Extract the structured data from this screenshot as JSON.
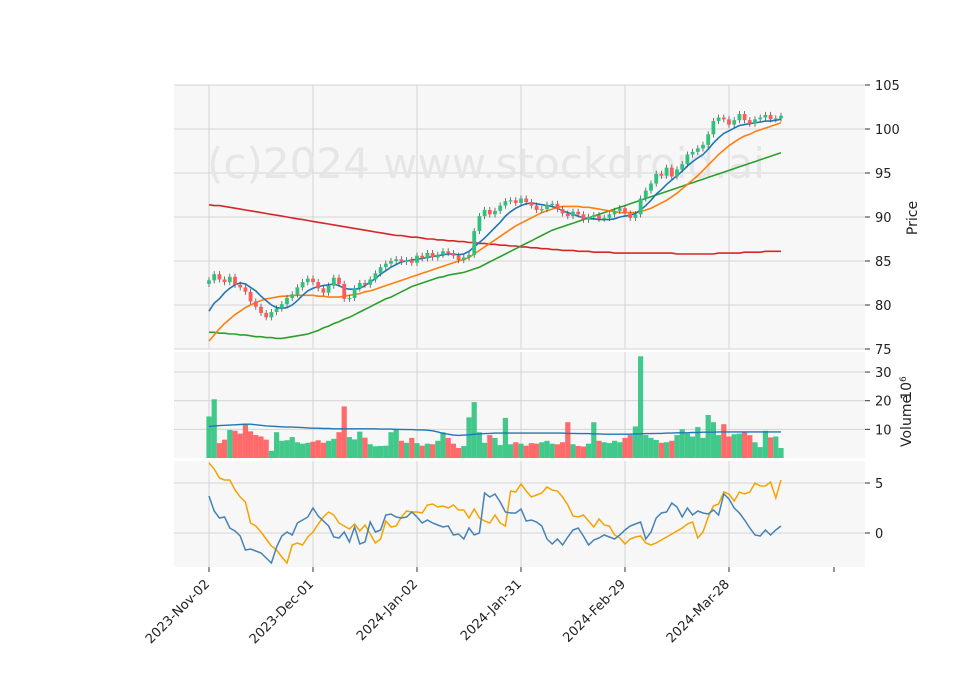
{
  "watermark": "(c)2024 www.stockdroid.ai",
  "colors": {
    "up": "#2ec27e",
    "down": "#ff5a5a",
    "ma_short": "#1f77b4",
    "ma_mid": "#ff7f0e",
    "ma_long": "#2ca02c",
    "ma_longest": "#d62728",
    "osc_a": "#f5a300",
    "osc_b": "#4682b4",
    "panel_bg": "#f7f7f7",
    "grid": "#d4d4d4"
  },
  "chart_data": [
    {
      "type": "candlestick",
      "panel": "price",
      "ylabel": "Price",
      "ylim": [
        75,
        105
      ],
      "yticks": [
        75,
        80,
        85,
        90,
        95,
        100,
        105
      ],
      "x_tick_labels": [
        "2023-Nov-02",
        "2023-Dec-01",
        "2024-Jan-02",
        "2024-Jan-31",
        "2024-Feb-29",
        "2024-Mar-28"
      ],
      "x_tick_index": [
        0,
        20,
        40,
        60,
        80,
        100
      ],
      "grid": true,
      "close": [
        82.8,
        83.5,
        82.9,
        82.6,
        83.2,
        82.3,
        82.0,
        81.5,
        80.4,
        79.8,
        79.1,
        78.6,
        79.2,
        79.6,
        80.1,
        80.8,
        81.2,
        82.0,
        82.6,
        83.0,
        82.6,
        81.9,
        81.4,
        82.2,
        83.1,
        82.4,
        80.7,
        80.8,
        81.9,
        82.5,
        82.3,
        82.9,
        83.6,
        84.3,
        84.7,
        85.0,
        85.2,
        84.9,
        85.1,
        84.8,
        85.6,
        85.3,
        85.9,
        85.4,
        85.7,
        86.1,
        85.9,
        85.6,
        85.1,
        85.4,
        85.7,
        88.4,
        90.1,
        90.8,
        90.3,
        90.7,
        91.3,
        91.8,
        91.9,
        91.6,
        92.1,
        91.7,
        91.3,
        90.8,
        90.9,
        91.4,
        91.5,
        90.9,
        90.4,
        90.1,
        90.6,
        90.3,
        89.7,
        90.0,
        90.2,
        89.8,
        89.9,
        90.3,
        90.7,
        91.0,
        90.4,
        89.9,
        90.3,
        92.1,
        93.0,
        93.8,
        94.9,
        94.7,
        95.6,
        94.6,
        95.4,
        96.0,
        97.1,
        97.4,
        97.8,
        98.2,
        99.4,
        100.9,
        101.3,
        101.1,
        100.5,
        101.0,
        101.7,
        101.0,
        100.6,
        101.1,
        101.3,
        101.6,
        101.1,
        101.2,
        101.5
      ],
      "ma": [
        {
          "values": [
            79.3,
            80.2,
            80.7,
            81.4,
            81.9,
            82.3,
            82.5,
            82.4,
            82.0,
            81.6,
            81.0,
            80.5,
            80.0,
            79.7,
            79.6,
            79.7,
            80.0,
            80.5,
            81.1,
            81.6,
            81.9,
            82.1,
            82.2,
            82.3,
            82.4,
            82.2,
            81.9,
            81.8,
            81.8,
            81.9,
            82.2,
            82.6,
            83.0,
            83.5,
            83.9,
            84.3,
            84.6,
            84.9,
            85.0,
            85.1,
            85.2,
            85.3,
            85.4,
            85.5,
            85.6,
            85.7,
            85.8,
            85.8,
            85.7,
            85.8,
            86.1,
            86.6,
            87.1,
            87.6,
            88.2,
            88.8,
            89.4,
            90.1,
            90.6,
            91.0,
            91.3,
            91.5,
            91.6,
            91.5,
            91.4,
            91.3,
            91.2,
            91.0,
            90.7,
            90.5,
            90.3,
            90.1,
            89.9,
            89.8,
            89.8,
            89.7,
            89.7,
            89.7,
            89.8,
            90.0,
            90.1,
            90.2,
            90.4,
            90.8,
            91.3,
            91.9,
            92.6,
            93.1,
            93.7,
            94.2,
            94.7,
            95.2,
            95.8,
            96.3,
            96.7,
            97.1,
            97.7,
            98.4,
            99.0,
            99.5,
            99.8,
            100.1,
            100.4,
            100.5,
            100.6,
            100.7,
            100.8,
            100.9,
            100.9,
            101.0,
            101.1
          ]
        },
        {
          "values": [
            75.9,
            76.6,
            77.3,
            77.9,
            78.4,
            78.9,
            79.3,
            79.7,
            80.0,
            80.3,
            80.5,
            80.7,
            80.8,
            80.9,
            81.0,
            81.0,
            81.1,
            81.1,
            81.1,
            81.1,
            81.1,
            81.0,
            81.0,
            80.9,
            80.9,
            80.9,
            81.0,
            81.1,
            81.2,
            81.3,
            81.5,
            81.6,
            81.8,
            82.0,
            82.2,
            82.4,
            82.6,
            82.8,
            83.0,
            83.2,
            83.4,
            83.6,
            83.8,
            84.0,
            84.2,
            84.4,
            84.6,
            84.8,
            85.0,
            85.2,
            85.4,
            85.8,
            86.2,
            86.6,
            87.0,
            87.4,
            87.8,
            88.2,
            88.6,
            89.0,
            89.3,
            89.6,
            89.9,
            90.2,
            90.5,
            90.7,
            90.9,
            91.1,
            91.2,
            91.2,
            91.2,
            91.2,
            91.1,
            91.1,
            91.0,
            90.9,
            90.8,
            90.7,
            90.6,
            90.5,
            90.5,
            90.5,
            90.5,
            90.6,
            90.8,
            91.0,
            91.3,
            91.6,
            91.9,
            92.3,
            92.7,
            93.2,
            93.7,
            94.2,
            94.7,
            95.3,
            95.9,
            96.5,
            97.1,
            97.6,
            98.1,
            98.5,
            98.9,
            99.2,
            99.4,
            99.7,
            99.9,
            100.1,
            100.3,
            100.5,
            100.7
          ]
        },
        {
          "values": [
            76.9,
            76.9,
            76.8,
            76.8,
            76.7,
            76.7,
            76.6,
            76.6,
            76.5,
            76.4,
            76.4,
            76.3,
            76.3,
            76.2,
            76.2,
            76.3,
            76.4,
            76.5,
            76.6,
            76.7,
            76.9,
            77.1,
            77.4,
            77.6,
            77.9,
            78.1,
            78.4,
            78.6,
            78.9,
            79.2,
            79.5,
            79.8,
            80.1,
            80.4,
            80.7,
            80.9,
            81.2,
            81.5,
            81.8,
            82.1,
            82.3,
            82.5,
            82.7,
            82.9,
            83.1,
            83.2,
            83.4,
            83.5,
            83.6,
            83.7,
            83.9,
            84.1,
            84.3,
            84.6,
            84.9,
            85.2,
            85.5,
            85.8,
            86.1,
            86.4,
            86.7,
            87.0,
            87.3,
            87.6,
            87.9,
            88.2,
            88.5,
            88.7,
            88.9,
            89.1,
            89.3,
            89.5,
            89.7,
            89.9,
            90.1,
            90.3,
            90.5,
            90.7,
            90.9,
            91.1,
            91.3,
            91.5,
            91.7,
            91.9,
            92.1,
            92.3,
            92.5,
            92.7,
            92.9,
            93.1,
            93.3,
            93.5,
            93.7,
            93.9,
            94.1,
            94.3,
            94.5,
            94.7,
            94.9,
            95.1,
            95.3,
            95.5,
            95.7,
            95.9,
            96.1,
            96.3,
            96.5,
            96.7,
            96.9,
            97.1,
            97.3
          ]
        },
        {
          "values": [
            91.4,
            91.3,
            91.3,
            91.2,
            91.1,
            91.0,
            90.9,
            90.8,
            90.7,
            90.6,
            90.5,
            90.4,
            90.3,
            90.2,
            90.1,
            90.0,
            89.9,
            89.8,
            89.7,
            89.6,
            89.5,
            89.4,
            89.3,
            89.2,
            89.1,
            89.0,
            88.9,
            88.8,
            88.7,
            88.6,
            88.5,
            88.4,
            88.3,
            88.2,
            88.1,
            88.0,
            87.9,
            87.9,
            87.8,
            87.7,
            87.7,
            87.6,
            87.5,
            87.5,
            87.4,
            87.4,
            87.3,
            87.3,
            87.2,
            87.2,
            87.1,
            87.1,
            87.0,
            87.0,
            86.9,
            86.9,
            86.8,
            86.8,
            86.7,
            86.7,
            86.6,
            86.6,
            86.5,
            86.5,
            86.4,
            86.4,
            86.3,
            86.3,
            86.2,
            86.2,
            86.2,
            86.1,
            86.1,
            86.1,
            86.0,
            86.0,
            86.0,
            86.0,
            85.9,
            85.9,
            85.9,
            85.9,
            85.9,
            85.9,
            85.9,
            85.9,
            85.9,
            85.9,
            85.9,
            85.9,
            85.8,
            85.8,
            85.8,
            85.8,
            85.8,
            85.8,
            85.8,
            85.8,
            85.9,
            85.9,
            85.9,
            85.9,
            85.9,
            86.0,
            86.0,
            86.0,
            86.0,
            86.1,
            86.1,
            86.1,
            86.1
          ]
        }
      ]
    },
    {
      "type": "bar",
      "panel": "volume",
      "ylabel": "Volume",
      "ylabel_exponent": "10^6",
      "ylim": [
        0,
        37
      ],
      "yticks": [
        10,
        20,
        30
      ],
      "values": [
        14.5,
        20.5,
        5.2,
        6.4,
        9.8,
        9.5,
        8.5,
        12.0,
        9.3,
        8.0,
        7.5,
        6.4,
        2.5,
        9.0,
        6.0,
        6.2,
        7.3,
        5.5,
        5.0,
        5.3,
        5.7,
        6.2,
        5.3,
        6.0,
        6.7,
        9.0,
        18.0,
        7.3,
        6.5,
        9.2,
        7.1,
        4.8,
        4.1,
        4.2,
        4.3,
        9.0,
        10.2,
        6.0,
        5.3,
        7.0,
        5.2,
        4.3,
        5.0,
        4.8,
        6.0,
        9.0,
        7.0,
        5.0,
        3.5,
        4.2,
        14.2,
        19.5,
        9.0,
        5.3,
        8.0,
        7.0,
        4.5,
        14.0,
        4.8,
        5.5,
        5.0,
        4.3,
        5.2,
        5.0,
        5.5,
        6.0,
        5.0,
        4.8,
        5.5,
        12.5,
        4.8,
        4.2,
        4.0,
        5.0,
        12.5,
        6.0,
        5.5,
        5.2,
        6.0,
        5.5,
        7.0,
        8.0,
        11.0,
        35.5,
        8.0,
        7.0,
        6.3,
        5.3,
        5.5,
        6.0,
        8.0,
        10.0,
        8.5,
        7.5,
        10.8,
        7.0,
        15.0,
        12.5,
        8.0,
        11.8,
        7.5,
        8.3,
        8.5,
        9.0,
        8.0,
        5.5,
        3.8,
        9.5,
        7.2,
        7.5,
        3.5
      ],
      "avg_line": [
        11.0,
        11.2,
        11.3,
        11.4,
        11.5,
        11.6,
        11.7,
        11.8,
        11.8,
        11.6,
        11.4,
        11.2,
        11.1,
        11.0,
        10.9,
        10.8,
        10.8,
        10.7,
        10.6,
        10.5,
        10.4,
        10.4,
        10.3,
        10.3,
        10.2,
        10.2,
        10.2,
        10.2,
        10.2,
        10.2,
        10.2,
        10.2,
        10.2,
        10.1,
        10.1,
        10.1,
        10.0,
        10.0,
        9.9,
        9.9,
        9.8,
        9.8,
        9.7,
        9.5,
        9.1,
        8.6,
        8.3,
        8.0,
        7.9,
        8.0,
        8.1,
        8.3,
        8.4,
        8.5,
        8.6,
        8.7,
        8.7,
        8.7,
        8.7,
        8.7,
        8.7,
        8.7,
        8.7,
        8.7,
        8.7,
        8.7,
        8.7,
        8.7,
        8.7,
        8.6,
        8.6,
        8.5,
        8.5,
        8.5,
        8.4,
        8.4,
        8.3,
        8.3,
        8.3,
        8.3,
        8.3,
        8.3,
        8.4,
        8.4,
        8.5,
        8.5,
        8.6,
        8.6,
        8.7,
        8.7,
        8.8,
        8.8,
        8.8,
        8.9,
        8.9,
        9.0,
        9.0,
        9.0,
        9.1,
        9.1,
        9.1,
        9.1,
        9.1,
        9.1,
        9.1,
        9.1,
        9.1,
        9.1,
        9.1,
        9.1,
        9.1
      ]
    },
    {
      "type": "line",
      "panel": "oscillator",
      "ylim": [
        -3.4,
        7.2
      ],
      "yticks": [
        0,
        5
      ],
      "series": [
        {
          "values": [
            7.0,
            6.4,
            5.5,
            5.3,
            5.3,
            4.3,
            3.6,
            3.1,
            1.0,
            0.7,
            0.1,
            -0.6,
            -1.3,
            -1.7,
            -2.4,
            -3.0,
            -1.2,
            -1.0,
            -1.2,
            -0.4,
            0.1,
            0.9,
            1.6,
            2.1,
            1.8,
            1.0,
            0.7,
            0.4,
            0.9,
            0.2,
            0.8,
            -0.1,
            -1.0,
            -0.6,
            1.2,
            0.6,
            0.7,
            1.6,
            2.2,
            2.1,
            2.1,
            2.0,
            2.8,
            2.9,
            2.6,
            2.7,
            2.5,
            2.8,
            2.3,
            2.3,
            1.5,
            2.4,
            1.5,
            1.2,
            1.0,
            1.8,
            1.0,
            0.7,
            4.2,
            4.1,
            4.9,
            4.2,
            3.6,
            3.8,
            4.0,
            4.6,
            4.3,
            4.2,
            3.6,
            2.8,
            1.7,
            1.6,
            1.8,
            1.2,
            0.6,
            1.4,
            0.8,
            0.7,
            -0.2,
            -0.5,
            -1.1,
            -0.6,
            -0.4,
            -0.3,
            -1.0,
            -1.2,
            -1.0,
            -0.7,
            -0.4,
            -0.1,
            0.2,
            0.5,
            0.9,
            1.1,
            -0.5,
            0.1,
            1.6,
            2.7,
            2.9,
            4.1,
            3.9,
            3.2,
            4.1,
            3.9,
            4.1,
            5.0,
            4.7,
            4.7,
            5.1,
            3.5,
            5.3
          ]
        },
        {
          "values": [
            3.7,
            2.2,
            1.5,
            1.6,
            0.5,
            0.2,
            -0.3,
            -1.7,
            -1.6,
            -1.8,
            -2.0,
            -2.5,
            -3.0,
            -1.4,
            -0.3,
            0.1,
            -0.2,
            1.0,
            1.3,
            1.6,
            2.5,
            1.7,
            1.2,
            0.7,
            -0.4,
            -0.5,
            0.1,
            -0.9,
            0.6,
            -1.1,
            -0.9,
            1.1,
            0.1,
            0.3,
            1.8,
            1.9,
            1.6,
            1.5,
            1.6,
            2.1,
            1.6,
            1.0,
            1.3,
            1.0,
            0.8,
            0.6,
            0.7,
            -0.2,
            -0.1,
            -0.6,
            0.5,
            -0.2,
            0.0,
            4.0,
            3.6,
            3.9,
            3.1,
            2.1,
            2.0,
            2.0,
            2.4,
            1.2,
            1.3,
            1.1,
            0.7,
            -0.6,
            -1.1,
            -0.6,
            -1.2,
            -0.4,
            0.3,
            0.5,
            -0.3,
            -1.2,
            -0.7,
            -0.5,
            -0.2,
            -0.4,
            -0.6,
            -0.2,
            0.3,
            0.7,
            0.9,
            1.1,
            -0.6,
            0.1,
            1.5,
            2.0,
            2.1,
            3.0,
            2.6,
            1.6,
            2.5,
            1.8,
            2.2,
            2.0,
            1.9,
            2.3,
            1.8,
            3.9,
            3.4,
            2.5,
            2.0,
            1.3,
            0.5,
            -0.2,
            -0.3,
            0.3,
            -0.2,
            0.3,
            0.7
          ]
        }
      ]
    }
  ]
}
